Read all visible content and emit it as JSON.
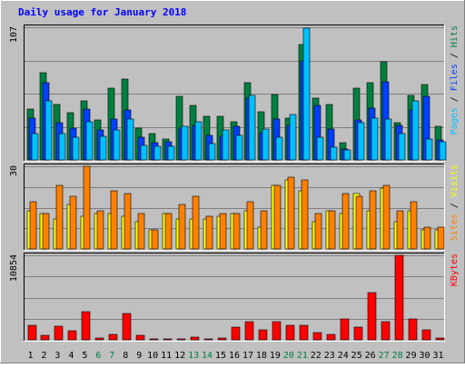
{
  "chart_data": {
    "type": "bar",
    "title": "Daily usage for January 2018",
    "categories": [
      "1",
      "2",
      "3",
      "4",
      "5",
      "6",
      "7",
      "8",
      "9",
      "10",
      "11",
      "12",
      "13",
      "14",
      "15",
      "16",
      "17",
      "18",
      "19",
      "20",
      "21",
      "22",
      "23",
      "24",
      "25",
      "26",
      "27",
      "28",
      "29",
      "30",
      "31"
    ],
    "weekend_days": [
      "6",
      "7",
      "13",
      "14",
      "20",
      "21",
      "27",
      "28"
    ],
    "panels": [
      {
        "id": "hits-files-pages",
        "ymax_label": "107",
        "ylim": [
          0,
          107
        ],
        "legend": [
          {
            "text": "Pages",
            "color": "#00c0ff"
          },
          {
            "text": " / ",
            "color": "#000000"
          },
          {
            "text": "Files",
            "color": "#0040ff"
          },
          {
            "text": " / ",
            "color": "#000000"
          },
          {
            "text": "Hits",
            "color": "#008040"
          }
        ],
        "series": [
          {
            "name": "Hits",
            "color": "#008040",
            "values": [
              41,
              70,
              45,
              38,
              48,
              32,
              58,
              65,
              26,
              21,
              17,
              51,
              44,
              35,
              35,
              31,
              62,
              39,
              53,
              34,
              93,
              50,
              45,
              14,
              58,
              62,
              79,
              30,
              52,
              61,
              27
            ]
          },
          {
            "name": "Files",
            "color": "#0040ff",
            "values": [
              34,
              62,
              30,
              26,
              41,
              24,
              33,
              40,
              18,
              14,
              15,
              26,
              28,
              20,
              19,
              27,
              50,
              22,
              33,
              28,
              80,
              44,
              25,
              9,
              32,
              42,
              63,
              28,
              40,
              51,
              16
            ]
          },
          {
            "name": "Pages",
            "color": "#00c0ff",
            "values": [
              21,
              48,
              21,
              18,
              31,
              19,
              24,
              33,
              12,
              11,
              11,
              27,
              31,
              13,
              24,
              20,
              52,
              25,
              18,
              37,
              106,
              18,
              10,
              8,
              30,
              34,
              33,
              21,
              48,
              17,
              15
            ]
          }
        ]
      },
      {
        "id": "visits-sites",
        "ymax_label": "30",
        "ylim": [
          0,
          30
        ],
        "legend": [
          {
            "text": "Sites",
            "color": "#ff8000"
          },
          {
            "text": " / ",
            "color": "#000000"
          },
          {
            "text": "Visits",
            "color": "#ffff00"
          }
        ],
        "series": [
          {
            "name": "Visits",
            "color": "#ffff00",
            "values": [
              14,
              13,
              11,
              16,
              12,
              13,
              13,
              12,
              10,
              7,
              13,
              11,
              11,
              11,
              12,
              13,
              14,
              8,
              23,
              25,
              21,
              10,
              14,
              13,
              20,
              14,
              22,
              10,
              14,
              7,
              7
            ]
          },
          {
            "name": "Sites",
            "color": "#ff8000",
            "values": [
              17,
              13,
              23,
              19,
              30,
              14,
              21,
              20,
              13,
              7,
              13,
              16,
              19,
              12,
              13,
              13,
              17,
              14,
              23,
              26,
              25,
              13,
              14,
              20,
              19,
              21,
              23,
              14,
              17,
              8,
              8
            ]
          }
        ]
      },
      {
        "id": "kbytes",
        "ymax_label": "10854",
        "ylim": [
          0,
          10854
        ],
        "legend": [
          {
            "text": "KBytes",
            "color": "#ff0000"
          }
        ],
        "series": [
          {
            "name": "KBytes",
            "color": "#ff0000",
            "values": [
              1868,
              622,
              1755,
              1189,
              3619,
              218,
              757,
              3334,
              598,
              61,
              39,
              61,
              384,
              77,
              204,
              1683,
              2350,
              1331,
              2293,
              1810,
              1868,
              978,
              757,
              2637,
              1680,
              6070,
              2369,
              10854,
              2628,
              1245,
              232
            ]
          }
        ]
      }
    ]
  }
}
